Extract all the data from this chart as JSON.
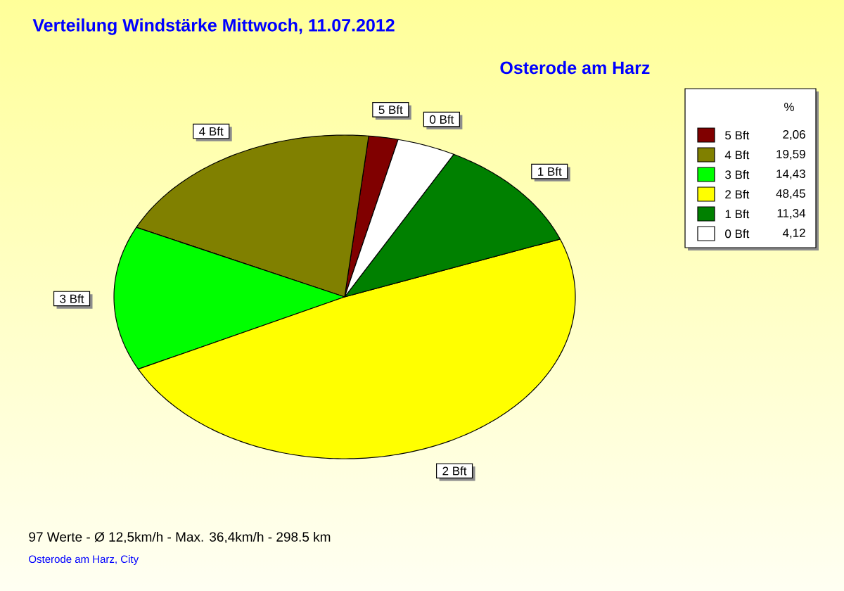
{
  "chart_data": {
    "type": "pie",
    "title": "Verteilung Windstärke  Mittwoch, 11.07.2012",
    "subtitle": "Osterode am Harz",
    "legend_title": "%",
    "categories": [
      "5 Bft",
      "4 Bft",
      "3 Bft",
      "2 Bft",
      "1 Bft",
      "0 Bft"
    ],
    "values": [
      2.06,
      19.59,
      14.43,
      48.45,
      11.34,
      4.12
    ],
    "value_labels": [
      "2,06",
      "19,59",
      "14,43",
      "48,45",
      "11,34",
      "4,12"
    ],
    "colors": [
      "#800000",
      "#808000",
      "#00ff00",
      "#ffff00",
      "#008000",
      "#ffffff"
    ],
    "legend": "top right",
    "annotations": [
      "97 Werte - Ø 12,5km/h - Max. 36,4km/h - 298.5 km",
      "Osterode am Harz, City"
    ]
  }
}
